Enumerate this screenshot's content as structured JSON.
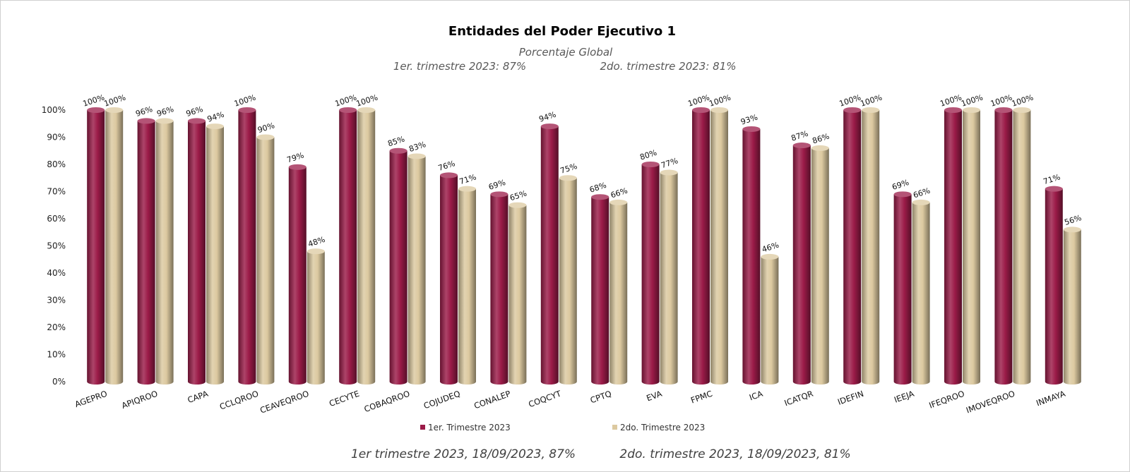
{
  "chart_data": {
    "type": "bar",
    "title": "Entidades del Poder Ejecutivo 1",
    "subtitle": "Porcentaje Global",
    "subtitle_q1": "1er. trimestre 2023: 87%",
    "subtitle_q2": "2do. trimestre 2023: 81%",
    "categories": [
      "AGEPRO",
      "APIQROO",
      "CAPA",
      "CCLQROO",
      "CEAVEQROO",
      "CECYTE",
      "COBAQROO",
      "COJUDEQ",
      "CONALEP",
      "COQCYT",
      "CPTQ",
      "EVA",
      "FPMC",
      "ICA",
      "ICATQR",
      "IDEFIN",
      "IEEJA",
      "IFEQROO",
      "IMOVEQROO",
      "INMAYA"
    ],
    "series": [
      {
        "name": "1er. Trimestre 2023",
        "color": "#9b1b48",
        "values": [
          100,
          96,
          96,
          100,
          79,
          100,
          85,
          76,
          69,
          94,
          68,
          80,
          100,
          93,
          87,
          100,
          69,
          100,
          100,
          71
        ]
      },
      {
        "name": "2do. Trimestre 2023",
        "color": "#dcc9a0",
        "values": [
          100,
          96,
          94,
          90,
          48,
          100,
          83,
          71,
          65,
          75,
          66,
          77,
          100,
          46,
          86,
          100,
          66,
          100,
          100,
          56
        ]
      }
    ],
    "ylim": [
      0,
      100
    ],
    "yticks": [
      "0%",
      "10%",
      "20%",
      "30%",
      "40%",
      "50%",
      "60%",
      "70%",
      "80%",
      "90%",
      "100%"
    ],
    "ylabel": "",
    "xlabel": "",
    "grid": false,
    "legend_position": "bottom",
    "footer_q1": "1er trimestre  2023,  18/09/2023, 87%",
    "footer_q2": "2do. trimestre 2023, 18/09/2023, 81%"
  }
}
